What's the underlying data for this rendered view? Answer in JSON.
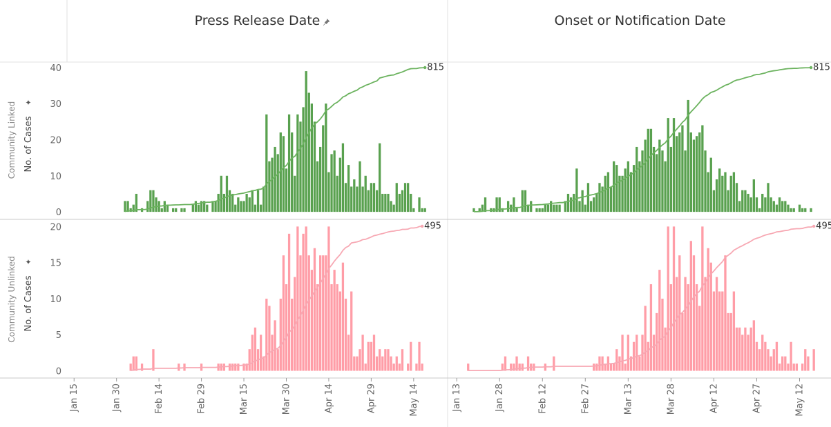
{
  "chart_data": [
    {
      "type": "bar",
      "title": "Press Release Date",
      "row_label": "Community Linked",
      "ylabel": "No. of Cases",
      "color": "#59a14f",
      "line_color": "#6cb35f",
      "end_label": 815,
      "xlim": [
        12.5,
        147
      ],
      "ylim": [
        -1.7,
        41.5
      ],
      "yticks": [
        0,
        10,
        20,
        30,
        40
      ],
      "x": [
        33,
        34,
        35,
        36,
        37,
        38,
        39,
        40,
        41,
        42,
        43,
        44,
        45,
        46,
        47,
        48,
        49,
        50,
        51,
        52,
        53,
        54,
        55,
        56,
        57,
        58,
        59,
        60,
        61,
        62,
        63,
        64,
        65,
        66,
        67,
        68,
        69,
        70,
        71,
        72,
        73,
        74,
        75,
        76,
        77,
        78,
        79,
        80,
        81,
        82,
        83,
        84,
        85,
        86,
        87,
        88,
        89,
        90,
        91,
        92,
        93,
        94,
        95,
        96,
        97,
        98,
        99,
        100,
        101,
        102,
        103,
        104,
        105,
        106,
        107,
        108,
        109,
        110,
        111,
        112,
        113,
        114,
        115,
        116,
        117,
        118,
        119,
        120,
        121,
        122,
        123,
        124,
        125,
        126,
        127,
        128,
        129,
        130,
        131,
        132,
        133,
        134,
        135,
        136,
        137,
        138,
        139
      ],
      "values": [
        3,
        3,
        1,
        2,
        5,
        0,
        1,
        0,
        3,
        6,
        6,
        4,
        3,
        1,
        3,
        2,
        0,
        1,
        1,
        0,
        1,
        1,
        0,
        0,
        2,
        3,
        2,
        3,
        3,
        2,
        0,
        3,
        3,
        5,
        10,
        5,
        10,
        6,
        5,
        2,
        4,
        3,
        3,
        5,
        4,
        6,
        2,
        6,
        2,
        7,
        27,
        14,
        15,
        18,
        16,
        22,
        21,
        12,
        27,
        22,
        10,
        27,
        25,
        29,
        39,
        33,
        30,
        25,
        14,
        18,
        24,
        30,
        11,
        16,
        17,
        10,
        15,
        19,
        8,
        13,
        7,
        9,
        7,
        14,
        7,
        10,
        6,
        8,
        8,
        6,
        19,
        5,
        5,
        5,
        3,
        2,
        8,
        5,
        6,
        8,
        8,
        5,
        1,
        0,
        4,
        1,
        1
      ]
    },
    {
      "type": "bar",
      "title": "Onset or Notification Date",
      "color": "#59a14f",
      "line_color": "#6cb35f",
      "end_label": 815,
      "xlim": [
        10.3,
        144
      ],
      "ylim": [
        -1.7,
        41.5
      ],
      "x": [
        19,
        20,
        21,
        22,
        23,
        24,
        25,
        26,
        27,
        28,
        29,
        30,
        31,
        32,
        33,
        34,
        35,
        36,
        37,
        38,
        39,
        40,
        41,
        42,
        43,
        44,
        45,
        46,
        47,
        48,
        49,
        50,
        51,
        52,
        53,
        54,
        55,
        56,
        57,
        58,
        59,
        60,
        61,
        62,
        63,
        64,
        65,
        66,
        67,
        68,
        69,
        70,
        71,
        72,
        73,
        74,
        75,
        76,
        77,
        78,
        79,
        80,
        81,
        82,
        83,
        84,
        85,
        86,
        87,
        88,
        89,
        90,
        91,
        92,
        93,
        94,
        95,
        96,
        97,
        98,
        99,
        100,
        101,
        102,
        103,
        104,
        105,
        106,
        107,
        108,
        109,
        110,
        111,
        112,
        113,
        114,
        115,
        116,
        117,
        118,
        119,
        120,
        121,
        122,
        123,
        124,
        125,
        126,
        127,
        128,
        129,
        130,
        131,
        132,
        133,
        134,
        135,
        136,
        137
      ],
      "values": [
        1,
        0,
        1,
        2,
        4,
        0,
        1,
        1,
        4,
        4,
        1,
        0,
        3,
        2,
        4,
        1,
        0,
        6,
        6,
        2,
        3,
        0,
        1,
        1,
        1,
        2,
        2,
        3,
        2,
        2,
        2,
        0,
        3,
        5,
        4,
        5,
        12,
        3,
        6,
        2,
        8,
        3,
        4,
        5,
        8,
        7,
        10,
        11,
        7,
        14,
        13,
        10,
        10,
        12,
        14,
        11,
        13,
        18,
        14,
        17,
        20,
        23,
        23,
        18,
        16,
        20,
        17,
        14,
        26,
        18,
        26,
        21,
        22,
        24,
        17,
        31,
        22,
        20,
        21,
        22,
        24,
        17,
        11,
        15,
        6,
        9,
        12,
        10,
        11,
        6,
        10,
        11,
        8,
        3,
        6,
        6,
        5,
        4,
        9,
        4,
        1,
        5,
        4,
        8,
        4,
        3,
        2,
        4,
        3,
        3,
        2,
        1,
        1,
        0,
        2,
        1,
        1,
        0,
        1
      ]
    },
    {
      "type": "bar",
      "row_label": "Community Unlinked",
      "ylabel": "No. of Cases",
      "color": "#ff9da7",
      "line_color": "#f7a8b3",
      "end_label": 495,
      "xlim": [
        12.5,
        147
      ],
      "ylim": [
        -1,
        20.8
      ],
      "yticks": [
        0,
        5,
        10,
        15,
        20
      ],
      "xticks": [
        {
          "value": 15,
          "label": "Jan 15"
        },
        {
          "value": 30,
          "label": "Jan 30"
        },
        {
          "value": 45,
          "label": "Feb 14"
        },
        {
          "value": 60,
          "label": "Feb 29"
        },
        {
          "value": 75,
          "label": "Mar 15"
        },
        {
          "value": 90,
          "label": "Mar 30"
        },
        {
          "value": 105,
          "label": "Apr 14"
        },
        {
          "value": 120,
          "label": "Apr 29"
        },
        {
          "value": 135,
          "label": "May 14"
        }
      ],
      "x": [
        35,
        36,
        37,
        38,
        39,
        40,
        41,
        42,
        43,
        44,
        45,
        46,
        47,
        48,
        49,
        50,
        51,
        52,
        53,
        54,
        55,
        56,
        57,
        58,
        59,
        60,
        61,
        62,
        63,
        64,
        65,
        66,
        67,
        68,
        69,
        70,
        71,
        72,
        73,
        74,
        75,
        76,
        77,
        78,
        79,
        80,
        81,
        82,
        83,
        84,
        85,
        86,
        87,
        88,
        89,
        90,
        91,
        92,
        93,
        94,
        95,
        96,
        97,
        98,
        99,
        100,
        101,
        102,
        103,
        104,
        105,
        106,
        107,
        108,
        109,
        110,
        111,
        112,
        113,
        114,
        115,
        116,
        117,
        118,
        119,
        120,
        121,
        122,
        123,
        124,
        125,
        126,
        127,
        128,
        129,
        130,
        131,
        132,
        133,
        134,
        135,
        136,
        137,
        138
      ],
      "values": [
        1,
        2,
        2,
        0,
        1,
        0,
        0,
        0,
        3,
        0,
        0,
        0,
        0,
        0,
        0,
        0,
        0,
        1,
        0,
        1,
        0,
        0,
        0,
        0,
        0,
        1,
        0,
        0,
        0,
        0,
        0,
        1,
        1,
        1,
        0,
        1,
        1,
        1,
        1,
        0,
        1,
        1,
        3,
        5,
        6,
        3,
        5,
        2,
        10,
        9,
        5,
        7,
        3,
        10,
        16,
        12,
        19,
        10,
        13,
        20,
        16,
        19,
        20,
        16,
        14,
        17,
        12,
        16,
        16,
        16,
        20,
        12,
        14,
        12,
        11,
        15,
        10,
        5,
        11,
        2,
        2,
        3,
        5,
        1,
        4,
        4,
        5,
        2,
        3,
        2,
        3,
        3,
        2,
        1,
        2,
        1,
        3,
        0,
        1,
        4,
        0,
        1,
        4,
        1
      ]
    },
    {
      "type": "bar",
      "color": "#ff9da7",
      "line_color": "#f7a8b3",
      "end_label": 495,
      "xlim": [
        10.3,
        144
      ],
      "ylim": [
        -1,
        20.8
      ],
      "xticks": [
        {
          "value": 13,
          "label": "Jan 13"
        },
        {
          "value": 28,
          "label": "Jan 28"
        },
        {
          "value": 43,
          "label": "Feb 12"
        },
        {
          "value": 58,
          "label": "Feb 27"
        },
        {
          "value": 73,
          "label": "Mar 13"
        },
        {
          "value": 88,
          "label": "Mar 28"
        },
        {
          "value": 103,
          "label": "Apr 12"
        },
        {
          "value": 118,
          "label": "Apr 27"
        },
        {
          "value": 133,
          "label": "May 12"
        }
      ],
      "x": [
        17,
        18,
        19,
        20,
        21,
        22,
        23,
        24,
        25,
        26,
        27,
        28,
        29,
        30,
        31,
        32,
        33,
        34,
        35,
        36,
        37,
        38,
        39,
        40,
        41,
        42,
        43,
        44,
        45,
        46,
        47,
        48,
        49,
        50,
        51,
        52,
        53,
        54,
        55,
        56,
        57,
        58,
        59,
        60,
        61,
        62,
        63,
        64,
        65,
        66,
        67,
        68,
        69,
        70,
        71,
        72,
        73,
        74,
        75,
        76,
        77,
        78,
        79,
        80,
        81,
        82,
        83,
        84,
        85,
        86,
        87,
        88,
        89,
        90,
        91,
        92,
        93,
        94,
        95,
        96,
        97,
        98,
        99,
        100,
        101,
        102,
        103,
        104,
        105,
        106,
        107,
        108,
        109,
        110,
        111,
        112,
        113,
        114,
        115,
        116,
        117,
        118,
        119,
        120,
        121,
        122,
        123,
        124,
        125,
        126,
        127,
        128,
        129,
        130,
        131,
        132,
        133,
        134,
        135,
        136,
        137,
        138
      ],
      "values": [
        1,
        0,
        0,
        0,
        0,
        0,
        0,
        0,
        0,
        0,
        0,
        0,
        1,
        2,
        0,
        1,
        1,
        2,
        1,
        1,
        0,
        2,
        1,
        1,
        0,
        0,
        0,
        1,
        0,
        0,
        2,
        0,
        0,
        0,
        0,
        0,
        0,
        0,
        0,
        0,
        0,
        0,
        0,
        0,
        1,
        1,
        2,
        2,
        1,
        2,
        1,
        1,
        3,
        2,
        5,
        1,
        5,
        2,
        4,
        5,
        2,
        5,
        9,
        4,
        12,
        5,
        8,
        14,
        10,
        6,
        20,
        12,
        20,
        13,
        16,
        8,
        13,
        12,
        18,
        16,
        12,
        9,
        20,
        13,
        17,
        15,
        11,
        13,
        11,
        11,
        16,
        8,
        8,
        11,
        6,
        6,
        5,
        6,
        5,
        6,
        7,
        4,
        3,
        5,
        4,
        3,
        2,
        3,
        4,
        1,
        2,
        2,
        1,
        4,
        1,
        1,
        0,
        1,
        3,
        2,
        0,
        3
      ]
    }
  ]
}
